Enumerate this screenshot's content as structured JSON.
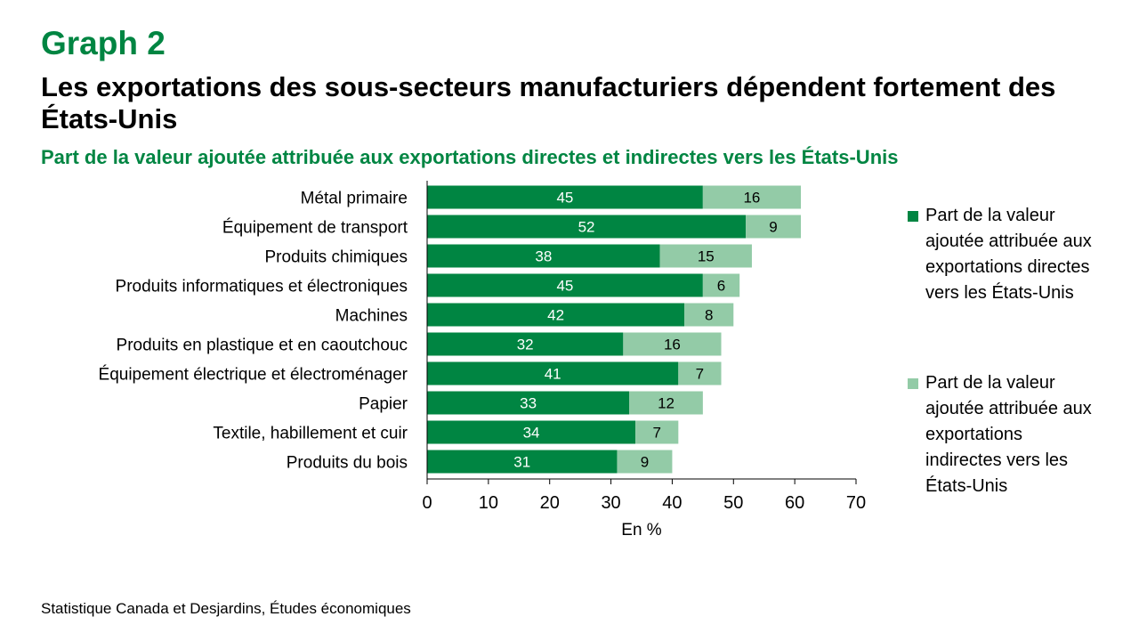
{
  "header": {
    "graph_label": "Graph 2",
    "title": "Les exportations des sous-secteurs manufacturiers dépendent fortement des États-Unis",
    "subtitle": "Part de la valeur ajoutée attribuée aux exportations directes et indirectes vers les États-Unis"
  },
  "colors": {
    "direct": "#008542",
    "indirect": "#93cba7",
    "accent": "#008542"
  },
  "legend": {
    "direct": "Part de la valeur ajoutée attribuée aux exportations directes vers les États-Unis",
    "indirect": "Part de la valeur ajoutée attribuée aux exportations indirectes vers les États-Unis"
  },
  "source": "Statistique Canada et Desjardins, Études économiques",
  "chart_data": {
    "type": "bar",
    "orientation": "horizontal",
    "stacked": true,
    "categories": [
      "Métal primaire",
      "Équipement de transport",
      "Produits chimiques",
      "Produits informatiques et électroniques",
      "Machines",
      "Produits en plastique et en caoutchouc",
      "Équipement électrique et électroménager",
      "Papier",
      "Textile, habillement et cuir",
      "Produits du bois"
    ],
    "series": [
      {
        "name": "Part de la valeur ajoutée attribuée aux exportations directes vers les États-Unis",
        "values": [
          45,
          52,
          38,
          45,
          42,
          32,
          41,
          33,
          34,
          31
        ]
      },
      {
        "name": "Part de la valeur ajoutée attribuée aux exportations indirectes vers les États-Unis",
        "values": [
          16,
          9,
          15,
          6,
          8,
          16,
          7,
          12,
          7,
          9
        ]
      }
    ],
    "xlabel": "En %",
    "ylabel": "",
    "xlim": [
      0,
      70
    ],
    "xticks": [
      0,
      10,
      20,
      30,
      40,
      50,
      60,
      70
    ],
    "grid": false,
    "legend_position": "right"
  }
}
